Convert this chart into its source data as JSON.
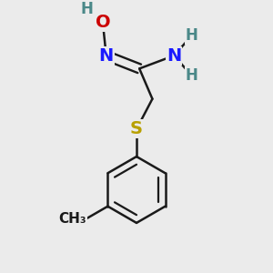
{
  "bg_color": "#ebebeb",
  "bond_color": "#1a1a1a",
  "bond_width": 1.8,
  "atom_colors": {
    "C": "#1a1a1a",
    "H": "#4a8888",
    "N": "#1a1aff",
    "O": "#cc0000",
    "S": "#b8a000"
  },
  "font_size_main": 14,
  "font_size_H": 12,
  "font_size_methyl": 11
}
